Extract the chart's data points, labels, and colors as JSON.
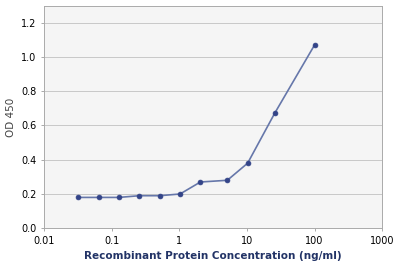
{
  "x_values": [
    0.032,
    0.064,
    0.128,
    0.256,
    0.512,
    1.024,
    2.048,
    5.12,
    10.24,
    25.6,
    100.0
  ],
  "y_values": [
    0.18,
    0.18,
    0.18,
    0.19,
    0.19,
    0.2,
    0.27,
    0.28,
    0.38,
    0.67,
    1.07
  ],
  "line_color": "#6677aa",
  "marker_color": "#334488",
  "xlabel": "Recombinant Protein Concentration (ng/ml)",
  "ylabel": "OD 450",
  "xlim": [
    0.01,
    1000
  ],
  "ylim": [
    0.0,
    1.3
  ],
  "yticks": [
    0.0,
    0.2,
    0.4,
    0.6,
    0.8,
    1.0,
    1.2
  ],
  "xticks": [
    0.01,
    0.1,
    1,
    10,
    100,
    1000
  ],
  "xtick_labels": [
    "0.01",
    "0.1",
    "1",
    "10",
    "100",
    "1000"
  ],
  "background_color": "#ffffff",
  "plot_bg_color": "#f5f5f5",
  "grid_color": "#c8c8c8",
  "spine_color": "#aaaaaa",
  "font_size_label": 7.5,
  "font_size_tick": 7,
  "marker_size": 3.5,
  "line_width": 1.2
}
